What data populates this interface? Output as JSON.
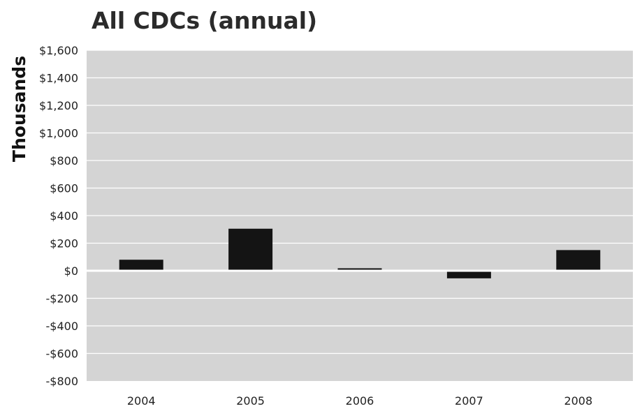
{
  "chart_data": {
    "type": "bar",
    "title": "All CDCs (annual)",
    "xlabel": "",
    "ylabel": "Thousands",
    "categories": [
      "2004",
      "2005",
      "2006",
      "2007",
      "2008"
    ],
    "values": [
      80,
      305,
      18,
      -55,
      150
    ],
    "ylim": [
      -800,
      1600
    ],
    "yticks": [
      1600,
      1400,
      1200,
      1000,
      800,
      600,
      400,
      200,
      0,
      -200,
      -400,
      -600,
      -800
    ],
    "ytick_labels": [
      "$1,600",
      "$1,400",
      "$1,200",
      "$1,000",
      "$800",
      "$600",
      "$400",
      "$200",
      "$0",
      "-$200",
      "-$400",
      "-$600",
      "-$800"
    ],
    "grid": true,
    "legend": "none",
    "colors": {
      "plot_background": "#d4d4d4",
      "bar": "#141414",
      "gridline": "#ffffff"
    }
  }
}
